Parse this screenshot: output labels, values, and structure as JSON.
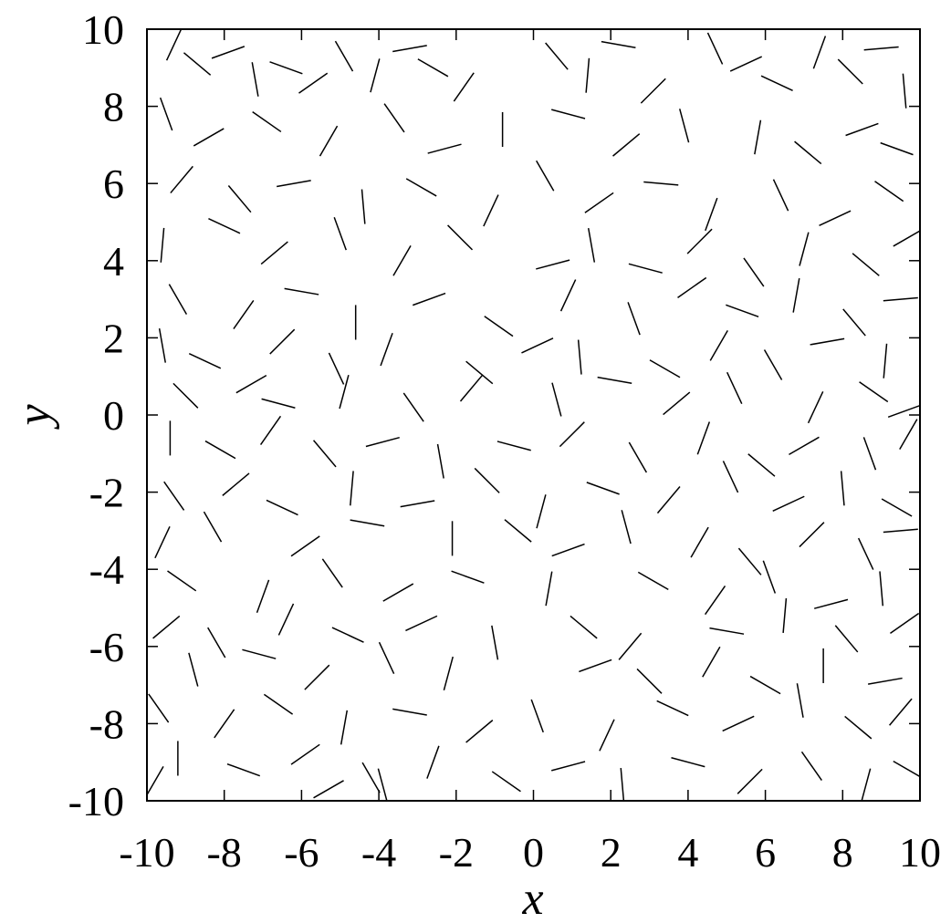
{
  "chart_data": {
    "type": "scatter",
    "mark": "line-segment",
    "title": "",
    "xlabel": "x",
    "ylabel": "y",
    "xlim": [
      -10,
      10
    ],
    "ylim": [
      -10,
      10
    ],
    "x_ticks": [
      "-10",
      "-8",
      "-6",
      "-4",
      "-2",
      "0",
      "2",
      "4",
      "6",
      "8",
      "10"
    ],
    "y_ticks": [
      "-10",
      "-8",
      "-6",
      "-4",
      "-2",
      "0",
      "2",
      "4",
      "6",
      "8",
      "10"
    ],
    "grid": false,
    "legend": "none",
    "segment_length": 0.9,
    "segment_color": "#000000",
    "segments": [
      [
        -9.3,
        9.6,
        65
      ],
      [
        -8.7,
        9.1,
        140
      ],
      [
        -7.9,
        9.4,
        20
      ],
      [
        -7.2,
        8.7,
        100
      ],
      [
        -6.4,
        9.0,
        160
      ],
      [
        -5.7,
        8.6,
        35
      ],
      [
        -4.9,
        9.3,
        120
      ],
      [
        -4.1,
        8.8,
        75
      ],
      [
        -3.2,
        9.5,
        10
      ],
      [
        -2.6,
        9.0,
        150
      ],
      [
        -1.8,
        8.5,
        55
      ],
      [
        0.6,
        9.3,
        130
      ],
      [
        1.4,
        8.8,
        85
      ],
      [
        2.2,
        9.6,
        170
      ],
      [
        3.1,
        8.4,
        45
      ],
      [
        4.7,
        9.5,
        115
      ],
      [
        5.5,
        9.1,
        25
      ],
      [
        6.3,
        8.6,
        155
      ],
      [
        7.4,
        9.4,
        70
      ],
      [
        8.2,
        8.9,
        135
      ],
      [
        9.0,
        9.5,
        5
      ],
      [
        9.6,
        8.4,
        95
      ],
      [
        -9.5,
        7.8,
        110
      ],
      [
        -8.4,
        7.2,
        30
      ],
      [
        -6.9,
        7.6,
        145
      ],
      [
        -5.3,
        7.1,
        60
      ],
      [
        -3.6,
        7.7,
        125
      ],
      [
        -2.3,
        6.9,
        15
      ],
      [
        -0.8,
        7.4,
        90
      ],
      [
        0.9,
        7.8,
        165
      ],
      [
        2.4,
        7.0,
        40
      ],
      [
        3.9,
        7.5,
        105
      ],
      [
        5.8,
        7.2,
        80
      ],
      [
        7.1,
        6.8,
        140
      ],
      [
        8.5,
        7.4,
        20
      ],
      [
        9.4,
        6.9,
        160
      ],
      [
        -9.1,
        6.1,
        50
      ],
      [
        -7.6,
        5.6,
        130
      ],
      [
        -6.2,
        6.0,
        10
      ],
      [
        -4.4,
        5.4,
        95
      ],
      [
        -2.9,
        5.9,
        150
      ],
      [
        -1.1,
        5.3,
        65
      ],
      [
        0.3,
        6.2,
        120
      ],
      [
        1.7,
        5.5,
        35
      ],
      [
        3.3,
        6.0,
        175
      ],
      [
        4.6,
        5.2,
        70
      ],
      [
        6.4,
        5.7,
        115
      ],
      [
        7.8,
        5.1,
        25
      ],
      [
        9.2,
        5.8,
        145
      ],
      [
        -9.6,
        4.4,
        85
      ],
      [
        -8.0,
        4.9,
        155
      ],
      [
        -6.7,
        4.2,
        40
      ],
      [
        -5.0,
        4.7,
        110
      ],
      [
        -3.4,
        4.0,
        60
      ],
      [
        -1.9,
        4.6,
        135
      ],
      [
        0.5,
        3.9,
        15
      ],
      [
        1.5,
        4.4,
        100
      ],
      [
        2.9,
        3.8,
        165
      ],
      [
        4.3,
        4.5,
        45
      ],
      [
        5.7,
        3.7,
        125
      ],
      [
        7.0,
        4.3,
        75
      ],
      [
        8.6,
        3.9,
        140
      ],
      [
        9.7,
        4.6,
        30
      ],
      [
        -9.2,
        3.0,
        120
      ],
      [
        -7.5,
        2.6,
        55
      ],
      [
        -6.0,
        3.2,
        170
      ],
      [
        -4.6,
        2.4,
        90
      ],
      [
        -2.7,
        3.0,
        20
      ],
      [
        -0.9,
        2.3,
        145
      ],
      [
        0.9,
        3.1,
        65
      ],
      [
        2.6,
        2.5,
        110
      ],
      [
        4.1,
        3.3,
        35
      ],
      [
        5.4,
        2.7,
        160
      ],
      [
        6.8,
        3.1,
        80
      ],
      [
        8.3,
        2.4,
        130
      ],
      [
        9.5,
        3.0,
        5
      ],
      [
        -9.6,
        1.8,
        100
      ],
      [
        -8.5,
        1.4,
        155
      ],
      [
        -6.5,
        1.9,
        45
      ],
      [
        -5.1,
        1.2,
        115
      ],
      [
        -3.8,
        1.7,
        70
      ],
      [
        -1.4,
        1.1,
        140
      ],
      [
        0.1,
        1.8,
        25
      ],
      [
        1.2,
        1.5,
        95
      ],
      [
        3.4,
        1.2,
        150
      ],
      [
        4.8,
        1.8,
        60
      ],
      [
        6.2,
        1.3,
        120
      ],
      [
        7.6,
        1.9,
        10
      ],
      [
        9.1,
        1.4,
        85
      ],
      [
        -9.0,
        0.5,
        135
      ],
      [
        -7.3,
        0.8,
        30
      ],
      [
        -6.6,
        0.3,
        165
      ],
      [
        -4.9,
        0.6,
        75
      ],
      [
        -3.1,
        0.2,
        125
      ],
      [
        -1.6,
        0.7,
        50
      ],
      [
        0.6,
        0.4,
        105
      ],
      [
        2.1,
        0.9,
        170
      ],
      [
        3.7,
        0.3,
        40
      ],
      [
        5.2,
        0.7,
        115
      ],
      [
        7.3,
        0.2,
        65
      ],
      [
        8.8,
        0.6,
        145
      ],
      [
        9.6,
        0.1,
        20
      ],
      [
        -9.4,
        -0.6,
        90
      ],
      [
        -8.1,
        -0.9,
        150
      ],
      [
        -6.8,
        -0.4,
        55
      ],
      [
        -5.4,
        -1.0,
        130
      ],
      [
        -3.9,
        -0.7,
        15
      ],
      [
        -2.4,
        -1.2,
        100
      ],
      [
        -0.5,
        -0.8,
        165
      ],
      [
        1.0,
        -0.5,
        45
      ],
      [
        2.7,
        -1.1,
        120
      ],
      [
        4.4,
        -0.6,
        70
      ],
      [
        5.9,
        -1.3,
        140
      ],
      [
        7.0,
        -0.8,
        30
      ],
      [
        8.7,
        -1.0,
        110
      ],
      [
        9.7,
        -0.5,
        60
      ],
      [
        -9.3,
        -2.1,
        125
      ],
      [
        -7.7,
        -1.8,
        40
      ],
      [
        -6.5,
        -2.4,
        155
      ],
      [
        -4.7,
        -1.9,
        85
      ],
      [
        -3.0,
        -2.3,
        10
      ],
      [
        -1.2,
        -1.7,
        135
      ],
      [
        0.2,
        -2.5,
        75
      ],
      [
        1.8,
        -1.9,
        160
      ],
      [
        3.5,
        -2.2,
        50
      ],
      [
        5.1,
        -1.6,
        115
      ],
      [
        6.6,
        -2.3,
        25
      ],
      [
        8.0,
        -1.9,
        95
      ],
      [
        9.4,
        -2.4,
        150
      ],
      [
        -9.6,
        -3.3,
        65
      ],
      [
        -8.3,
        -2.9,
        120
      ],
      [
        -5.9,
        -3.4,
        35
      ],
      [
        -4.3,
        -2.8,
        170
      ],
      [
        -2.1,
        -3.2,
        90
      ],
      [
        -0.4,
        -3.0,
        140
      ],
      [
        0.9,
        -3.5,
        20
      ],
      [
        2.4,
        -2.9,
        105
      ],
      [
        4.3,
        -3.3,
        60
      ],
      [
        5.6,
        -3.8,
        130
      ],
      [
        7.2,
        -3.1,
        45
      ],
      [
        8.6,
        -3.6,
        115
      ],
      [
        9.5,
        -3.0,
        5
      ],
      [
        -9.1,
        -4.3,
        145
      ],
      [
        -7.0,
        -4.7,
        70
      ],
      [
        -5.2,
        -4.1,
        125
      ],
      [
        -3.5,
        -4.6,
        30
      ],
      [
        -1.7,
        -4.2,
        160
      ],
      [
        0.4,
        -4.5,
        80
      ],
      [
        3.1,
        -4.3,
        150
      ],
      [
        4.7,
        -4.8,
        55
      ],
      [
        6.1,
        -4.2,
        110
      ],
      [
        7.7,
        -4.9,
        15
      ],
      [
        9.0,
        -4.5,
        95
      ],
      [
        -9.5,
        -5.5,
        40
      ],
      [
        -8.2,
        -5.9,
        120
      ],
      [
        -6.4,
        -5.3,
        65
      ],
      [
        -4.8,
        -5.7,
        155
      ],
      [
        -2.9,
        -5.4,
        25
      ],
      [
        -1.0,
        -5.9,
        100
      ],
      [
        1.3,
        -5.5,
        140
      ],
      [
        2.5,
        -6.0,
        50
      ],
      [
        5.0,
        -5.6,
        170
      ],
      [
        6.5,
        -5.2,
        85
      ],
      [
        8.1,
        -5.8,
        130
      ],
      [
        9.6,
        -5.4,
        35
      ],
      [
        -8.8,
        -6.6,
        105
      ],
      [
        -7.1,
        -6.2,
        165
      ],
      [
        -5.6,
        -6.8,
        45
      ],
      [
        -3.8,
        -6.3,
        115
      ],
      [
        -2.2,
        -6.7,
        75
      ],
      [
        1.6,
        -6.5,
        20
      ],
      [
        3.0,
        -6.9,
        135
      ],
      [
        4.6,
        -6.4,
        60
      ],
      [
        6.0,
        -7.0,
        150
      ],
      [
        7.5,
        -6.5,
        90
      ],
      [
        9.1,
        -6.9,
        10
      ],
      [
        -9.7,
        -7.6,
        125
      ],
      [
        -8.0,
        -8.0,
        55
      ],
      [
        -6.6,
        -7.5,
        145
      ],
      [
        -4.9,
        -8.1,
        80
      ],
      [
        -3.2,
        -7.7,
        170
      ],
      [
        -1.4,
        -8.2,
        40
      ],
      [
        0.1,
        -7.8,
        110
      ],
      [
        1.9,
        -8.3,
        65
      ],
      [
        3.6,
        -7.6,
        155
      ],
      [
        5.3,
        -8.0,
        25
      ],
      [
        6.9,
        -7.4,
        100
      ],
      [
        8.4,
        -8.1,
        140
      ],
      [
        9.5,
        -7.7,
        50
      ],
      [
        -9.2,
        -8.9,
        90
      ],
      [
        -7.5,
        -9.2,
        160
      ],
      [
        -5.9,
        -8.8,
        35
      ],
      [
        -4.2,
        -9.4,
        120
      ],
      [
        -2.6,
        -9.0,
        70
      ],
      [
        -0.7,
        -9.5,
        145
      ],
      [
        0.9,
        -9.1,
        15
      ],
      [
        2.3,
        -9.6,
        95
      ],
      [
        4.0,
        -9.0,
        165
      ],
      [
        5.6,
        -9.5,
        45
      ],
      [
        7.2,
        -9.1,
        125
      ],
      [
        8.6,
        -9.6,
        75
      ],
      [
        9.7,
        -9.2,
        150
      ],
      [
        -5.3,
        -9.7,
        30
      ],
      [
        -3.9,
        -9.6,
        105
      ],
      [
        -9.8,
        -9.5,
        60
      ]
    ]
  }
}
